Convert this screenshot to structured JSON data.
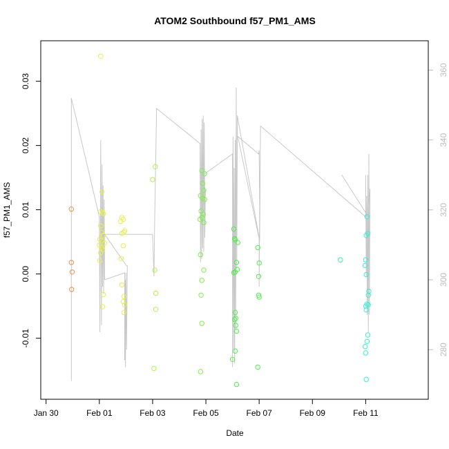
{
  "chart_data": {
    "type": "scatter",
    "title": "ATOM2 Southbound f57_PM1_AMS",
    "xlabel": "Date",
    "ylabel": "f57_PM1_AMS",
    "xlim": [
      -2.2,
      12.35
    ],
    "ylim": [
      -0.0195,
      0.0363
    ],
    "y2lim": [
      265.8,
      368.4
    ],
    "x_origin_label": "Feb 01 = day 0",
    "x_ticks": [
      {
        "value": -2,
        "label": "Jan 30"
      },
      {
        "value": 0,
        "label": "Feb 01"
      },
      {
        "value": 2,
        "label": "Feb 03"
      },
      {
        "value": 4,
        "label": "Feb 05"
      },
      {
        "value": 6,
        "label": "Feb 07"
      },
      {
        "value": 8,
        "label": "Feb 09"
      },
      {
        "value": 10,
        "label": "Feb 11"
      }
    ],
    "y_ticks": [
      {
        "value": -0.01,
        "label": "-0.01"
      },
      {
        "value": 0.0,
        "label": "0.00"
      },
      {
        "value": 0.01,
        "label": "0.01"
      },
      {
        "value": 0.02,
        "label": "0.02"
      },
      {
        "value": 0.03,
        "label": "0.03"
      }
    ],
    "y2_ticks": [
      {
        "value": 280,
        "label": "280"
      },
      {
        "value": 300,
        "label": "300"
      },
      {
        "value": 320,
        "label": "320"
      },
      {
        "value": 340,
        "label": "340"
      },
      {
        "value": 360,
        "label": "360"
      }
    ],
    "colors": {
      "line": "#c8c8c8",
      "right_axis": "#bdbdbd",
      "frame": "#000000"
    },
    "series": [
      {
        "color": "#e8914a",
        "points": [
          [
            -1.05,
            0.0101
          ],
          [
            -1.05,
            0.0018
          ],
          [
            -1.02,
            0.0003
          ],
          [
            -1.04,
            -0.0024
          ]
        ]
      },
      {
        "color": "#e6f04a",
        "points": [
          [
            0.05,
            0.0339
          ],
          [
            0.05,
            0.0097
          ],
          [
            0.1,
            0.0128
          ],
          [
            0.12,
            0.0096
          ],
          [
            0.15,
            0.0094
          ],
          [
            0.05,
            0.0075
          ],
          [
            0.08,
            0.0065
          ],
          [
            0.15,
            0.006
          ],
          [
            0.02,
            0.0054
          ],
          [
            0.1,
            0.0052
          ],
          [
            0.2,
            0.0048
          ],
          [
            0.0,
            0.0045
          ],
          [
            0.08,
            0.0041
          ],
          [
            0.12,
            0.0038
          ],
          [
            0.05,
            0.0033
          ],
          [
            0.02,
            0.0021
          ],
          [
            0.15,
            -0.0032
          ],
          [
            0.12,
            -0.0051
          ],
          [
            0.85,
            0.0088
          ],
          [
            0.9,
            0.0085
          ],
          [
            0.8,
            0.0082
          ],
          [
            0.92,
            0.0065
          ],
          [
            0.85,
            0.0063
          ],
          [
            0.95,
            0.0067
          ],
          [
            0.9,
            0.0044
          ],
          [
            0.82,
            0.0024
          ],
          [
            0.85,
            -0.0017
          ],
          [
            0.92,
            -0.0035
          ],
          [
            0.9,
            -0.0043
          ],
          [
            0.95,
            -0.0048
          ],
          [
            0.92,
            -0.006
          ]
        ]
      },
      {
        "color": "#b4f04a",
        "points": [
          [
            2.0,
            0.0147
          ],
          [
            2.1,
            0.0167
          ],
          [
            2.08,
            0.0006
          ],
          [
            2.12,
            -0.003
          ],
          [
            2.12,
            -0.0055
          ],
          [
            2.05,
            -0.0147
          ]
        ]
      },
      {
        "color": "#7df04a",
        "points": [
          [
            3.85,
            0.0161
          ],
          [
            3.95,
            0.0156
          ],
          [
            3.88,
            0.0141
          ],
          [
            3.92,
            0.013
          ],
          [
            3.8,
            0.0122
          ],
          [
            3.88,
            0.0118
          ],
          [
            3.95,
            0.0116
          ],
          [
            3.82,
            0.0098
          ],
          [
            3.9,
            0.0093
          ],
          [
            3.85,
            0.0088
          ],
          [
            3.78,
            0.0085
          ],
          [
            3.92,
            0.008
          ],
          [
            3.8,
            0.003
          ],
          [
            3.92,
            0.0006
          ],
          [
            3.85,
            -0.001
          ],
          [
            3.82,
            -0.0033
          ],
          [
            3.85,
            -0.0077
          ],
          [
            3.8,
            -0.0152
          ]
        ]
      },
      {
        "color": "#4df04a",
        "points": [
          [
            5.05,
            0.007
          ],
          [
            5.08,
            0.0055
          ],
          [
            5.1,
            0.0053
          ],
          [
            5.2,
            0.0049
          ],
          [
            5.15,
            0.0018
          ],
          [
            5.05,
            0.0002
          ],
          [
            5.1,
            0.0003
          ],
          [
            5.18,
            0.0007
          ],
          [
            5.1,
            -0.006
          ],
          [
            5.12,
            -0.0069
          ],
          [
            5.08,
            -0.0071
          ],
          [
            5.12,
            -0.008
          ],
          [
            5.15,
            -0.0089
          ],
          [
            5.1,
            -0.012
          ],
          [
            5.0,
            -0.0133
          ],
          [
            5.15,
            -0.0172
          ],
          [
            5.95,
            0.0041
          ],
          [
            6.0,
            0.0017
          ],
          [
            5.98,
            -0.0004
          ],
          [
            5.98,
            -0.0033
          ],
          [
            6.0,
            -0.0036
          ],
          [
            5.95,
            -0.0145
          ]
        ]
      },
      {
        "color": "#33f0a0",
        "points": [
          [
            9.05,
            0.0022
          ]
        ]
      },
      {
        "color": "#33f0d2",
        "points": [
          [
            10.05,
            0.0089
          ],
          [
            10.08,
            0.0063
          ],
          [
            10.02,
            0.006
          ],
          [
            10.0,
            0.0022
          ],
          [
            9.98,
            0.0013
          ],
          [
            10.02,
            -0.0001
          ],
          [
            10.12,
            -0.0027
          ],
          [
            10.1,
            -0.0033
          ],
          [
            10.05,
            -0.0047
          ],
          [
            10.1,
            -0.0048
          ],
          [
            10.0,
            -0.005
          ],
          [
            10.02,
            -0.0056
          ],
          [
            10.08,
            -0.0095
          ],
          [
            10.05,
            -0.0105
          ],
          [
            9.98,
            -0.0113
          ],
          [
            10.0,
            -0.0123
          ],
          [
            10.02,
            -0.0164
          ]
        ]
      }
    ],
    "secondary_line": [
      [
        -1.05,
        271
      ],
      [
        -1.05,
        352
      ],
      [
        0.0,
        318
      ],
      [
        0.02,
        285
      ],
      [
        0.05,
        340
      ],
      [
        0.08,
        287
      ],
      [
        0.1,
        333
      ],
      [
        0.12,
        298
      ],
      [
        0.14,
        327
      ],
      [
        0.16,
        296
      ],
      [
        0.18,
        323
      ],
      [
        0.2,
        300
      ],
      [
        0.95,
        302
      ],
      [
        0.95,
        277
      ],
      [
        0.97,
        300
      ],
      [
        0.98,
        275
      ],
      [
        1.0,
        302
      ],
      [
        1.02,
        280
      ],
      [
        1.05,
        304
      ],
      [
        1.02,
        304
      ],
      [
        0.2,
        313
      ],
      [
        2.0,
        313
      ],
      [
        2.05,
        301
      ],
      [
        2.08,
        318
      ],
      [
        2.1,
        327
      ],
      [
        2.15,
        349
      ],
      [
        3.78,
        339
      ],
      [
        3.8,
        305
      ],
      [
        3.82,
        343
      ],
      [
        3.84,
        306
      ],
      [
        3.86,
        346
      ],
      [
        3.88,
        309
      ],
      [
        3.9,
        347
      ],
      [
        3.92,
        308
      ],
      [
        3.94,
        345
      ],
      [
        3.96,
        312
      ],
      [
        3.98,
        325
      ],
      [
        3.9,
        330
      ],
      [
        5.0,
        336
      ],
      [
        5.0,
        275
      ],
      [
        5.02,
        341
      ],
      [
        5.04,
        280
      ],
      [
        5.06,
        332
      ],
      [
        5.08,
        276
      ],
      [
        5.1,
        340
      ],
      [
        5.12,
        286
      ],
      [
        5.14,
        355
      ],
      [
        5.16,
        303
      ],
      [
        5.18,
        341
      ],
      [
        5.18,
        347
      ],
      [
        6.0,
        312
      ],
      [
        6.0,
        298
      ],
      [
        6.02,
        321
      ],
      [
        6.0,
        337
      ],
      [
        5.98,
        336
      ],
      [
        5.2,
        341
      ],
      [
        6.02,
        311
      ],
      [
        6.05,
        344
      ],
      [
        10.0,
        318
      ],
      [
        10.0,
        330
      ],
      [
        10.02,
        301
      ],
      [
        10.04,
        324
      ],
      [
        10.06,
        290
      ],
      [
        10.08,
        330
      ],
      [
        10.1,
        285
      ],
      [
        10.12,
        336
      ],
      [
        10.14,
        290
      ],
      [
        10.16,
        326
      ],
      [
        10.1,
        318
      ],
      [
        9.1,
        330
      ]
    ]
  }
}
